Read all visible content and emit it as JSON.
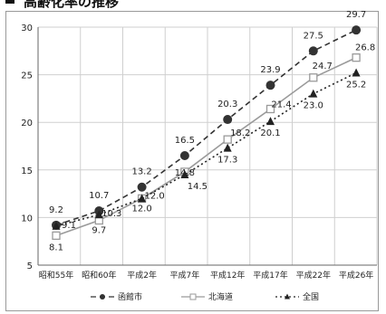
{
  "header": {
    "title": "高齢化率の推移"
  },
  "colors": {
    "hakodate": "#333333",
    "hokkaido": "#9a9a9a",
    "zenkoku": "#222222",
    "grid": "#cfcfcf"
  },
  "chart_data": {
    "type": "line",
    "title": "高齢化率の推移",
    "xlabel": "",
    "ylabel": "",
    "ylim": [
      5,
      30
    ],
    "yticks": [
      5,
      10,
      15,
      20,
      25,
      30
    ],
    "grid": true,
    "legend_position": "bottom",
    "categories": [
      "昭和55年",
      "昭和60年",
      "平成2年",
      "平成7年",
      "平成12年",
      "平成17年",
      "平成22年",
      "平成26年"
    ],
    "series": [
      {
        "name": "函館市",
        "marker": "circle",
        "line": "dashed",
        "values": [
          9.2,
          10.7,
          13.2,
          16.5,
          20.3,
          23.9,
          27.5,
          29.7
        ],
        "labels": [
          "9.2",
          "10.7",
          "13.2",
          "16.5",
          "20.3",
          "23.9",
          "27.5",
          "29.7"
        ]
      },
      {
        "name": "北海道",
        "marker": "square",
        "line": "solid",
        "values": [
          8.1,
          9.7,
          12.0,
          14.8,
          18.2,
          21.4,
          24.7,
          26.8
        ],
        "labels": [
          "8.1",
          "9.7",
          "12.0",
          "14.8",
          "18.2",
          "21.4",
          "24.7",
          "26.8"
        ]
      },
      {
        "name": "全国",
        "marker": "triangle",
        "line": "dotted",
        "values": [
          9.1,
          10.3,
          12.0,
          14.5,
          17.3,
          20.1,
          23.0,
          25.2
        ],
        "labels": [
          "9.1",
          "10.3",
          "12.0",
          "14.5",
          "17.3",
          "20.1",
          "23.0",
          "25.2"
        ]
      }
    ]
  }
}
